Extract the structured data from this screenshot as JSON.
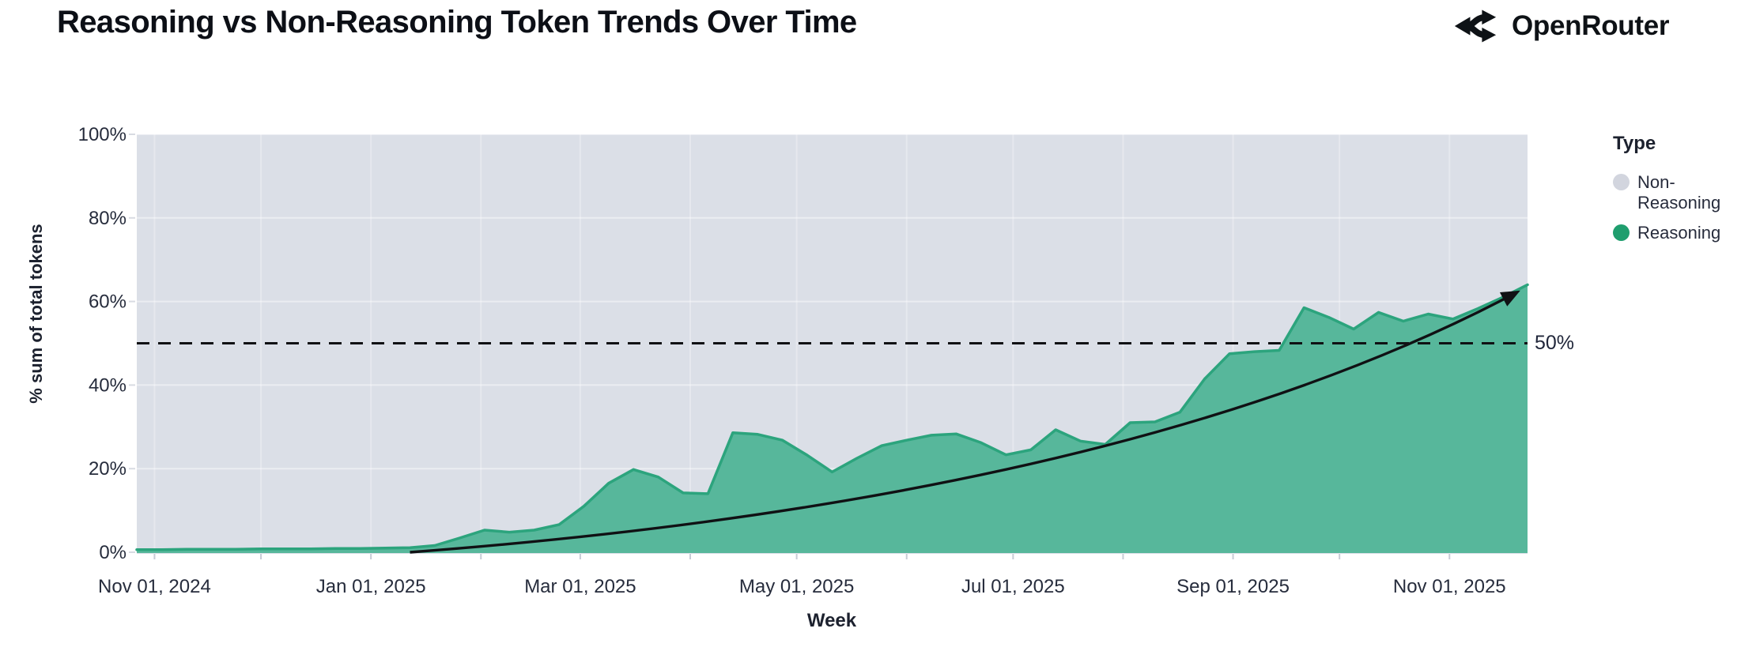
{
  "header": {
    "title": "Reasoning vs Non-Reasoning Token Trends Over Time",
    "brand": "OpenRouter"
  },
  "chart_data": {
    "type": "area",
    "stacked": true,
    "units": "percent share per week",
    "title": "Reasoning vs Non-Reasoning Token Trends Over Time",
    "xlabel": "Week",
    "ylabel": "% sum of total tokens",
    "x_axis": {
      "range_days": [
        -5,
        387
      ],
      "epoch_label": "Nov 01, 2024",
      "tick_days": [
        0,
        61,
        120,
        181,
        242,
        304,
        365
      ],
      "tick_labels": [
        "Nov 01, 2024",
        "Jan 01, 2025",
        "Mar 01, 2025",
        "May 01, 2025",
        "Jul 01, 2025",
        "Sep 01, 2025",
        "Nov 01, 2025"
      ],
      "month_gridline_days": [
        0,
        30,
        61,
        92,
        120,
        151,
        181,
        212,
        242,
        273,
        304,
        334,
        365
      ]
    },
    "y_axis": {
      "ylim": [
        0,
        100
      ],
      "tick_values": [
        0,
        20,
        40,
        60,
        80,
        100
      ],
      "tick_labels": [
        "0%",
        "20%",
        "40%",
        "60%",
        "80%",
        "100%"
      ]
    },
    "series": [
      {
        "name": "Reasoning",
        "legend_color": "#1f9e6e",
        "fill_color": "#57b79b",
        "edge_color": "#2ca47d",
        "x_start_day": -5,
        "x_step_days": 7,
        "values": [
          0.6,
          0.6,
          0.7,
          0.7,
          0.7,
          0.8,
          0.8,
          0.8,
          0.9,
          0.9,
          1.0,
          1.1,
          1.6,
          3.4,
          5.3,
          4.8,
          5.3,
          6.6,
          11,
          16.5,
          19.8,
          18,
          14.2,
          14,
          28.6,
          28.2,
          26.8,
          23.2,
          19.2,
          22.5,
          25.5,
          26.8,
          28,
          28.3,
          26.2,
          23.3,
          24.5,
          29.3,
          26.6,
          25.8,
          31,
          31.2,
          33.5,
          41.5,
          47.5,
          48,
          48.3,
          58.5,
          56.2,
          53.4,
          57.4,
          55.3,
          57,
          55.8,
          58.3,
          61,
          64
        ]
      },
      {
        "name": "Non-Reasoning",
        "legend_color": "#d2d5de",
        "fill_color": "#dbdfe7",
        "note": "remainder of 100% stacked area above Reasoning series"
      }
    ],
    "legend": {
      "title": "Type",
      "entries": [
        {
          "label": "Non-Reasoning",
          "color": "#d2d5de"
        },
        {
          "label": "Reasoning",
          "color": "#1f9e6e"
        }
      ]
    },
    "annotations": {
      "reference_line": {
        "value": 50,
        "label": "50%",
        "style": "dashed"
      },
      "trend_arrow": {
        "start_day": 72,
        "start_value": 0,
        "control_day": 273,
        "control_value": 12.8,
        "end_day": 382,
        "end_value": 61.3
      }
    },
    "colors": {
      "plot_bg": "#dbdfe7",
      "grid": "rgba(255,255,255,0.45)",
      "grid_vertical": "rgba(255,255,255,0.30)",
      "axis_text": "#262c3c",
      "tick_mark": "#c8ccd6",
      "line": "#101114"
    }
  }
}
